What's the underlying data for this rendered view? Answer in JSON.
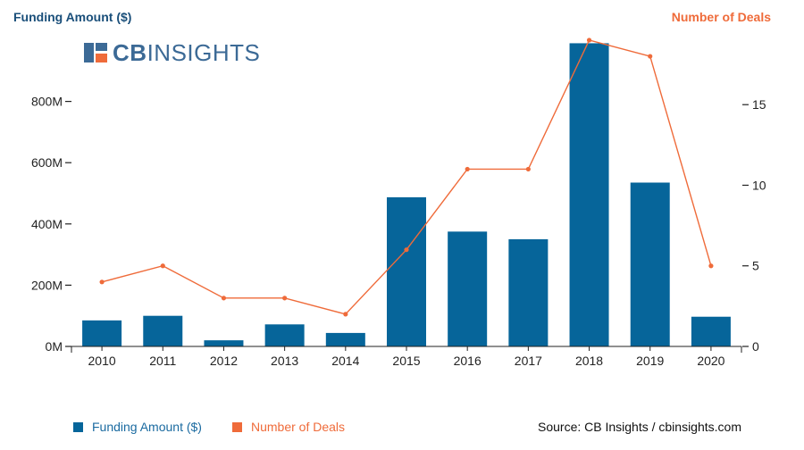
{
  "brand": {
    "logo_text_bold": "CB",
    "logo_text_light": "INSIGHTS"
  },
  "source": "Source: CB Insights / cbinsights.com",
  "colors": {
    "bar": "#06659a",
    "line": "#ef6b3a",
    "left_title": "#1a4f7a",
    "axis": "#222222"
  },
  "chart_data": {
    "type": "bar+line",
    "categories": [
      "2010",
      "2011",
      "2012",
      "2013",
      "2014",
      "2015",
      "2016",
      "2017",
      "2018",
      "2019",
      "2020"
    ],
    "series": [
      {
        "name": "Funding Amount ($)",
        "type": "bar",
        "axis": "left",
        "values": [
          85000000,
          100000000,
          20000000,
          72000000,
          44000000,
          487000000,
          375000000,
          350000000,
          990000000,
          535000000,
          97000000
        ]
      },
      {
        "name": "Number of Deals",
        "type": "line",
        "axis": "right",
        "values": [
          4,
          5,
          3,
          3,
          2,
          6,
          11,
          11,
          19,
          18,
          5
        ]
      }
    ],
    "left_axis": {
      "title": "Funding Amount ($)",
      "ylim": [
        0,
        1000000000
      ],
      "ticks": [
        0,
        200000000,
        400000000,
        600000000,
        800000000
      ],
      "tick_labels": [
        "0M",
        "200M",
        "400M",
        "600M",
        "800M"
      ]
    },
    "right_axis": {
      "title": "Number of Deals",
      "ylim": [
        0,
        19
      ],
      "ticks": [
        0,
        5,
        10,
        15
      ],
      "tick_labels": [
        "0",
        "5",
        "10",
        "15"
      ]
    },
    "legend": [
      {
        "label": "Funding Amount ($)"
      },
      {
        "label": "Number of Deals"
      }
    ],
    "legend_position": "bottom-left"
  }
}
